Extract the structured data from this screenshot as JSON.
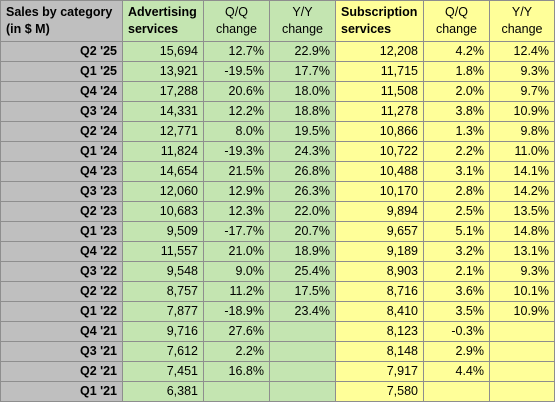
{
  "header": {
    "label": [
      "Sales by category",
      "(in $ M)"
    ],
    "advertising": [
      "Advertising",
      "services"
    ],
    "subscription": [
      "Subscription",
      "services"
    ],
    "qq": [
      "Q/Q",
      "change"
    ],
    "yy": [
      "Y/Y",
      "change"
    ]
  },
  "rows": [
    {
      "period": "Q2 '25",
      "adv": "15,694",
      "adv_qq": "12.7%",
      "adv_yy": "22.9%",
      "sub": "12,208",
      "sub_qq": "4.2%",
      "sub_yy": "12.4%"
    },
    {
      "period": "Q1 '25",
      "adv": "13,921",
      "adv_qq": "-19.5%",
      "adv_yy": "17.7%",
      "sub": "11,715",
      "sub_qq": "1.8%",
      "sub_yy": "9.3%"
    },
    {
      "period": "Q4 '24",
      "adv": "17,288",
      "adv_qq": "20.6%",
      "adv_yy": "18.0%",
      "sub": "11,508",
      "sub_qq": "2.0%",
      "sub_yy": "9.7%"
    },
    {
      "period": "Q3 '24",
      "adv": "14,331",
      "adv_qq": "12.2%",
      "adv_yy": "18.8%",
      "sub": "11,278",
      "sub_qq": "3.8%",
      "sub_yy": "10.9%"
    },
    {
      "period": "Q2 '24",
      "adv": "12,771",
      "adv_qq": "8.0%",
      "adv_yy": "19.5%",
      "sub": "10,866",
      "sub_qq": "1.3%",
      "sub_yy": "9.8%"
    },
    {
      "period": "Q1 '24",
      "adv": "11,824",
      "adv_qq": "-19.3%",
      "adv_yy": "24.3%",
      "sub": "10,722",
      "sub_qq": "2.2%",
      "sub_yy": "11.0%"
    },
    {
      "period": "Q4 '23",
      "adv": "14,654",
      "adv_qq": "21.5%",
      "adv_yy": "26.8%",
      "sub": "10,488",
      "sub_qq": "3.1%",
      "sub_yy": "14.1%"
    },
    {
      "period": "Q3 '23",
      "adv": "12,060",
      "adv_qq": "12.9%",
      "adv_yy": "26.3%",
      "sub": "10,170",
      "sub_qq": "2.8%",
      "sub_yy": "14.2%"
    },
    {
      "period": "Q2 '23",
      "adv": "10,683",
      "adv_qq": "12.3%",
      "adv_yy": "22.0%",
      "sub": "9,894",
      "sub_qq": "2.5%",
      "sub_yy": "13.5%"
    },
    {
      "period": "Q1 '23",
      "adv": "9,509",
      "adv_qq": "-17.7%",
      "adv_yy": "20.7%",
      "sub": "9,657",
      "sub_qq": "5.1%",
      "sub_yy": "14.8%"
    },
    {
      "period": "Q4 '22",
      "adv": "11,557",
      "adv_qq": "21.0%",
      "adv_yy": "18.9%",
      "sub": "9,189",
      "sub_qq": "3.2%",
      "sub_yy": "13.1%"
    },
    {
      "period": "Q3 '22",
      "adv": "9,548",
      "adv_qq": "9.0%",
      "adv_yy": "25.4%",
      "sub": "8,903",
      "sub_qq": "2.1%",
      "sub_yy": "9.3%"
    },
    {
      "period": "Q2 '22",
      "adv": "8,757",
      "adv_qq": "11.2%",
      "adv_yy": "17.5%",
      "sub": "8,716",
      "sub_qq": "3.6%",
      "sub_yy": "10.1%"
    },
    {
      "period": "Q1 '22",
      "adv": "7,877",
      "adv_qq": "-18.9%",
      "adv_yy": "23.4%",
      "sub": "8,410",
      "sub_qq": "3.5%",
      "sub_yy": "10.9%"
    },
    {
      "period": "Q4 '21",
      "adv": "9,716",
      "adv_qq": "27.6%",
      "adv_yy": "",
      "sub": "8,123",
      "sub_qq": "-0.3%",
      "sub_yy": ""
    },
    {
      "period": "Q3 '21",
      "adv": "7,612",
      "adv_qq": "2.2%",
      "adv_yy": "",
      "sub": "8,148",
      "sub_qq": "2.9%",
      "sub_yy": ""
    },
    {
      "period": "Q2 '21",
      "adv": "7,451",
      "adv_qq": "16.8%",
      "adv_yy": "",
      "sub": "7,917",
      "sub_qq": "4.4%",
      "sub_yy": ""
    },
    {
      "period": "Q1 '21",
      "adv": "6,381",
      "adv_qq": "",
      "adv_yy": "",
      "sub": "7,580",
      "sub_qq": "",
      "sub_yy": ""
    }
  ],
  "colors": {
    "label_column": "#bfbfbf",
    "advertising_columns": "#c4e5b1",
    "subscription_columns": "#ffff99",
    "gridline": "#8e8e8e"
  }
}
